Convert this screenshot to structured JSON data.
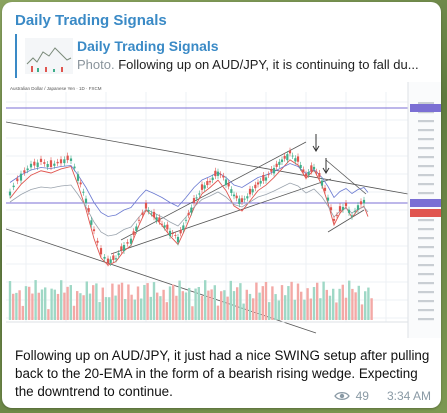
{
  "channel": {
    "name": "Daily Trading Signals"
  },
  "reply": {
    "title": "Daily Trading Signals",
    "media_label": "Photo.",
    "snippet": "Following up on AUD/JPY, it is continuing to fall du..."
  },
  "chart": {
    "header_line": "Australian Dollar / Japanese Yen · 1D · FXCM",
    "style": "candlestick",
    "colors": {
      "up": "#3fae8a",
      "down": "#e0554f",
      "ema": "#e0554f",
      "sma": "#6b7ad1",
      "volume_up": "#9fd8c6",
      "volume_down": "#f3a9a6"
    },
    "icons": [
      "down-arrow-icon",
      "down-arrow-icon"
    ]
  },
  "message": {
    "text": "Following up on AUD/JPY, it just had a nice SWING setup after pulling back to the 20-EMA in the form of a bearish rising wedge. Expecting the downtrend to continue.",
    "views": "49",
    "time": "3:34 AM"
  },
  "theme": {
    "accent": "#3a8ac6",
    "meta": "#8a9aa5"
  }
}
